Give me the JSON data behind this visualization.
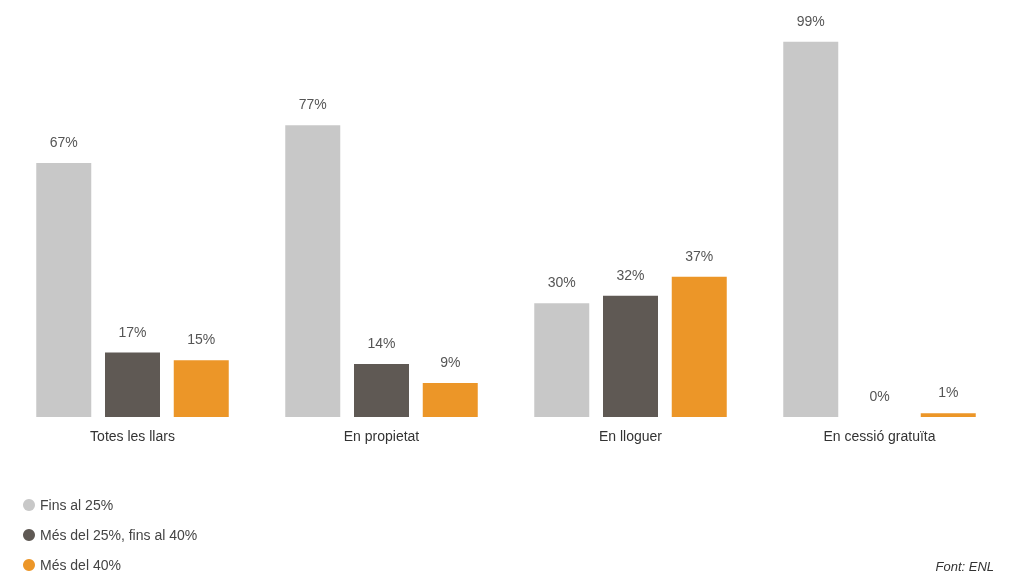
{
  "chart_data": {
    "type": "bar",
    "categories": [
      "Totes les llars",
      "En propietat",
      "En lloguer",
      "En cessió gratuïta"
    ],
    "series": [
      {
        "name": "Fins al 25%",
        "color": "#c8c8c8",
        "values": [
          67,
          77,
          30,
          99
        ],
        "value_labels": [
          "67%",
          "77%",
          "30%",
          "99%"
        ]
      },
      {
        "name": "Més del 25%, fins al 40%",
        "color": "#5f5954",
        "values": [
          17,
          14,
          32,
          0
        ],
        "value_labels": [
          "17%",
          "14%",
          "32%",
          "0%"
        ]
      },
      {
        "name": "Més del 40%",
        "color": "#ec9628",
        "values": [
          15,
          9,
          37,
          1
        ],
        "value_labels": [
          "15%",
          "9%",
          "37%",
          "1%"
        ]
      }
    ],
    "legend": "bottom left",
    "annotations": [
      "Font: ENL"
    ]
  }
}
